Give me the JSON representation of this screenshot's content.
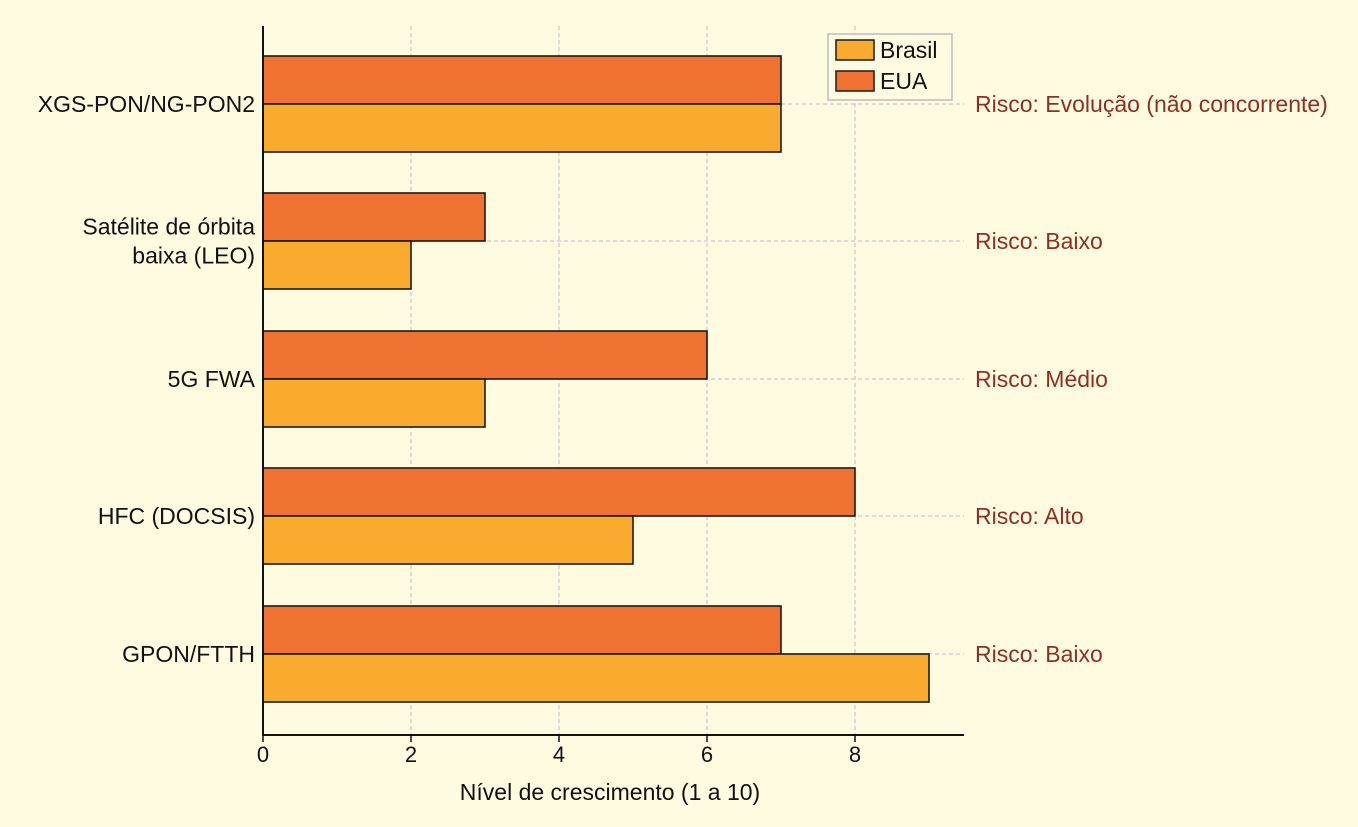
{
  "chart_data": {
    "type": "bar",
    "orientation": "horizontal",
    "title": "",
    "xlabel": "Nível de crescimento (1 a 10)",
    "ylabel": "",
    "xlim": [
      0,
      9.5
    ],
    "xticks": [
      0,
      2,
      4,
      6,
      8
    ],
    "grid": true,
    "legend_position": "top-right",
    "categories": [
      [
        "XGS-PON/NG-PON2"
      ],
      [
        "Satélite de órbita",
        "baixa (LEO)"
      ],
      [
        "5G FWA"
      ],
      [
        "HFC (DOCSIS)"
      ],
      [
        "GPON/FTTH"
      ]
    ],
    "series": [
      {
        "name": "Brasil",
        "color": "#f8ab2e",
        "values": [
          7,
          2,
          3,
          5,
          9
        ]
      },
      {
        "name": "EUA",
        "color": "#f07232",
        "values": [
          7,
          3,
          6,
          8,
          7
        ]
      }
    ],
    "annotations": [
      "Risco: Evolução (não concorrente)",
      "Risco: Baixo",
      "Risco: Médio",
      "Risco: Alto",
      "Risco: Baixo"
    ]
  }
}
